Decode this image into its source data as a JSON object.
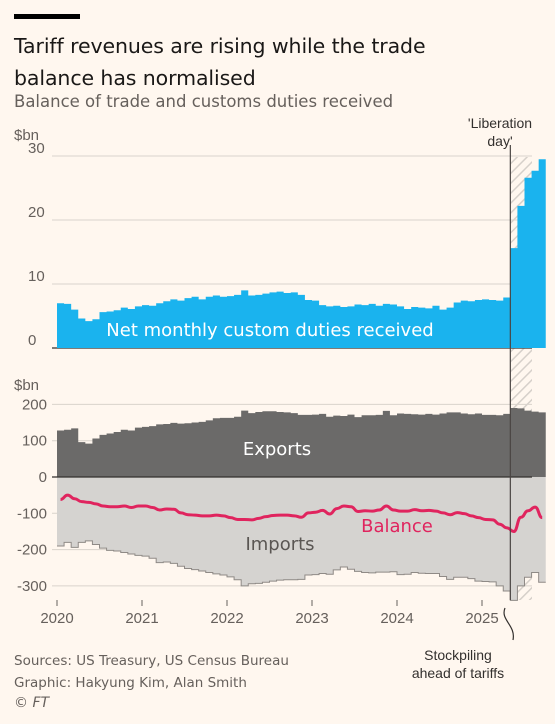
{
  "header": {
    "title_line1": "Tariff revenues are rising while the trade",
    "title_line2": "balance has normalised",
    "subtitle": "Balance of trade and customs duties received"
  },
  "footer": {
    "sources": "Sources: US Treasury, US Census Bureau",
    "graphic": "Graphic: Hakyung Kim, Alan Smith",
    "logo": "© FT"
  },
  "colors": {
    "duties": "#1ab3ee",
    "exports": "#6b6a69",
    "imports": "#d5d3d0",
    "balance": "#e0245e",
    "background": "#fff7ef"
  },
  "chart_data": [
    {
      "type": "area",
      "title": "Net monthly custom duties received",
      "ylabel": "$bn",
      "ylim": [
        0,
        30
      ],
      "yticks": [
        0,
        10,
        20,
        30
      ],
      "x_start": "2020-01",
      "frequency": "monthly",
      "xticks": [
        "2020",
        "2021",
        "2022",
        "2023",
        "2024",
        "2025"
      ],
      "series": [
        {
          "name": "Net monthly custom duties received",
          "values": [
            7.0,
            6.9,
            6.0,
            4.6,
            4.2,
            4.5,
            5.6,
            5.7,
            5.9,
            6.3,
            6.1,
            6.5,
            6.7,
            6.6,
            7.0,
            7.3,
            7.6,
            7.4,
            7.8,
            8.0,
            7.6,
            8.0,
            8.2,
            8.0,
            8.1,
            8.3,
            9.0,
            8.2,
            8.3,
            8.5,
            8.7,
            8.8,
            8.6,
            8.7,
            8.3,
            7.5,
            7.4,
            6.7,
            6.5,
            6.6,
            6.4,
            6.5,
            6.8,
            6.7,
            6.9,
            6.6,
            6.9,
            6.8,
            6.5,
            6.1,
            6.4,
            6.3,
            6.2,
            6.6,
            6.0,
            6.3,
            7.1,
            7.4,
            7.3,
            7.5,
            7.6,
            7.5,
            7.4,
            7.9,
            15.6,
            22.2,
            26.6,
            27.7,
            29.5
          ]
        }
      ],
      "annotations": [
        "'Liberation day'"
      ]
    },
    {
      "type": "area",
      "ylabel": "$bn",
      "ylim": [
        -340,
        200
      ],
      "yticks": [
        -300,
        -200,
        -100,
        0,
        100,
        200
      ],
      "x_start": "2020-01",
      "frequency": "monthly",
      "xticks": [
        "2020",
        "2021",
        "2022",
        "2023",
        "2024",
        "2025"
      ],
      "series": [
        {
          "name": "Exports",
          "values": [
            128,
            130,
            134,
            96,
            92,
            106,
            116,
            120,
            124,
            130,
            128,
            136,
            138,
            140,
            145,
            146,
            149,
            147,
            148,
            150,
            152,
            156,
            162,
            163,
            163,
            166,
            183,
            176,
            179,
            181,
            181,
            179,
            178,
            176,
            171,
            171,
            172,
            174,
            166,
            169,
            168,
            172,
            165,
            170,
            170,
            171,
            182,
            170,
            175,
            174,
            173,
            172,
            174,
            172,
            175,
            178,
            178,
            175,
            173,
            175,
            171,
            171,
            170,
            174,
            190,
            189,
            183,
            180,
            178
          ]
        },
        {
          "name": "Imports",
          "values": [
            -190,
            -180,
            -194,
            -180,
            -176,
            -186,
            -196,
            -202,
            -204,
            -208,
            -212,
            -216,
            -218,
            -224,
            -236,
            -234,
            -238,
            -246,
            -252,
            -255,
            -259,
            -263,
            -267,
            -270,
            -275,
            -283,
            -300,
            -294,
            -293,
            -290,
            -287,
            -284,
            -283,
            -283,
            -282,
            -270,
            -269,
            -266,
            -268,
            -256,
            -248,
            -254,
            -260,
            -263,
            -264,
            -262,
            -262,
            -261,
            -269,
            -268,
            -263,
            -265,
            -266,
            -266,
            -274,
            -282,
            -276,
            -276,
            -280,
            -287,
            -288,
            -289,
            -300,
            -314,
            -340,
            -300,
            -276,
            -263,
            -290
          ]
        },
        {
          "name": "Balance",
          "values": [
            -62,
            -50,
            -60,
            -68,
            -70,
            -74,
            -80,
            -82,
            -82,
            -80,
            -84,
            -80,
            -80,
            -84,
            -91,
            -88,
            -89,
            -99,
            -104,
            -105,
            -107,
            -107,
            -105,
            -107,
            -112,
            -117,
            -117,
            -118,
            -114,
            -109,
            -106,
            -105,
            -105,
            -107,
            -111,
            -99,
            -97,
            -92,
            -102,
            -87,
            -80,
            -82,
            -95,
            -93,
            -94,
            -91,
            -80,
            -91,
            -94,
            -94,
            -90,
            -93,
            -92,
            -94,
            -99,
            -104,
            -98,
            -101,
            -107,
            -112,
            -117,
            -118,
            -130,
            -140,
            -150,
            -111,
            -93,
            -83,
            -112
          ]
        }
      ],
      "annotations": [
        "Stockpiling ahead of tariffs"
      ]
    }
  ],
  "labels": {
    "duties_series": "Net monthly custom duties received",
    "exports": "Exports",
    "imports": "Imports",
    "balance": "Balance",
    "liberation_line1": "'Liberation",
    "liberation_line2": "day'",
    "stockpile_line1": "Stockpiling",
    "stockpile_line2": "ahead of tariffs",
    "unit1": "$bn",
    "unit2": "$bn"
  }
}
